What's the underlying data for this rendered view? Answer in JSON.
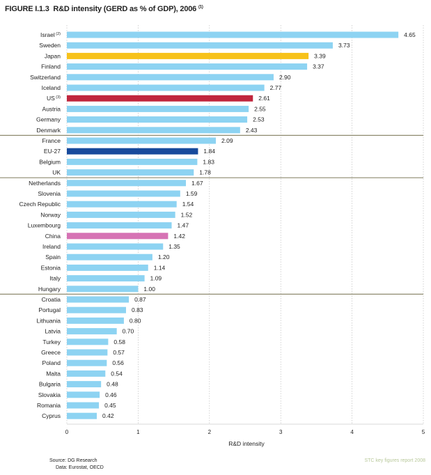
{
  "figure": {
    "number": "FIGURE I.1.3",
    "title": "R&D intensity (GERD as % of GDP), 2006",
    "title_note": "(1)"
  },
  "footer": {
    "source": "Source:  DG Research",
    "data": "Data:  Eurostat, OECD",
    "credit": "STC key figures report 2008"
  },
  "colors": {
    "default_bar": "#8dd3f2",
    "japan": "#f7c21a",
    "us": "#c0263d",
    "eu27": "#174a9c",
    "china": "#d672b4",
    "group_separator": "#8e8a6f",
    "gridline": "#b5b5b5"
  },
  "chart_data": {
    "type": "bar",
    "orientation": "horizontal",
    "xlabel": "R&D intensity",
    "xlim": [
      0,
      5
    ],
    "xticks": [
      0,
      1,
      2,
      3,
      4,
      5
    ],
    "grid": "vertical",
    "categories": [
      "Israel",
      "Sweden",
      "Japan",
      "Finland",
      "Switzerland",
      "Iceland",
      "US",
      "Austria",
      "Germany",
      "Denmark",
      "France",
      "EU-27",
      "Belgium",
      "UK",
      "Netherlands",
      "Slovenia",
      "Czech Republic",
      "Norway",
      "Luxembourg",
      "China",
      "Ireland",
      "Spain",
      "Estonia",
      "Italy",
      "Hungary",
      "Croatia",
      "Portugal",
      "Lithuania",
      "Latvia",
      "Turkey",
      "Greece",
      "Poland",
      "Malta",
      "Bulgaria",
      "Slovakia",
      "Romania",
      "Cyprus"
    ],
    "category_notes": {
      "Israel": "(2)",
      "US": "(3)"
    },
    "values": [
      4.65,
      3.73,
      3.39,
      3.37,
      2.9,
      2.77,
      2.61,
      2.55,
      2.53,
      2.43,
      2.09,
      1.84,
      1.83,
      1.78,
      1.67,
      1.59,
      1.54,
      1.52,
      1.47,
      1.42,
      1.35,
      1.2,
      1.14,
      1.09,
      1.0,
      0.87,
      0.83,
      0.8,
      0.7,
      0.58,
      0.57,
      0.56,
      0.54,
      0.48,
      0.46,
      0.45,
      0.42
    ],
    "value_labels": [
      "4.65",
      "3.73",
      "3.39",
      "3.37",
      "2.90",
      "2.77",
      "2.61",
      "2.55",
      "2.53",
      "2.43",
      "2.09",
      "1.84",
      "1.83",
      "1.78",
      "1.67",
      "1.59",
      "1.54",
      "1.52",
      "1.47",
      "1.42",
      "1.35",
      "1.20",
      "1.14",
      "1.09",
      "1.00",
      "0.87",
      "0.83",
      "0.80",
      "0.70",
      "0.58",
      "0.57",
      "0.56",
      "0.54",
      "0.48",
      "0.46",
      "0.45",
      "0.42"
    ],
    "highlighted": {
      "Japan": "japan",
      "US": "us",
      "EU-27": "eu27",
      "China": "china"
    },
    "group_boundaries_after": [
      "Denmark",
      "UK",
      "Hungary"
    ]
  }
}
